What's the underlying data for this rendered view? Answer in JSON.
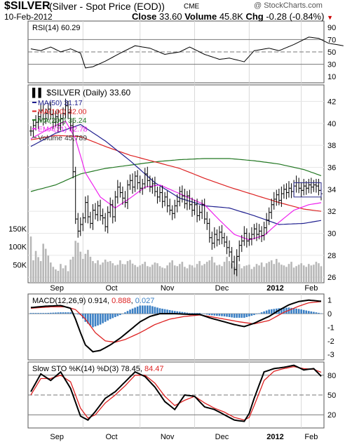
{
  "header": {
    "symbol": "$SILVER",
    "description": "(Silver - Spot Price (EOD))",
    "exchange": "CME",
    "logo": "@ StockCharts.com",
    "date": "10-Feb-2012",
    "close_label": "Close",
    "close_value": "33.60",
    "volume_label": "Volume",
    "volume_value": "45.8K",
    "chg_label": "Chg",
    "chg_value": "-0.28 (-0.84%)",
    "down_arrow": "▼"
  },
  "colors": {
    "price_bars": "#000000",
    "ma50": "#1f1f8f",
    "ma100": "#dd2222",
    "ma200": "#227722",
    "ema21": "#ee22ee",
    "volume": "#b8b8b8",
    "macd": "#000000",
    "macd_signal": "#dd2222",
    "macd_hist": "#3a7fc4",
    "sto_k": "#000000",
    "sto_d": "#dd2222"
  },
  "x_axis": {
    "months": [
      "Sep",
      "Oct",
      "Nov",
      "Dec",
      "2012",
      "Feb"
    ],
    "month_start_index": [
      0,
      21,
      44,
      66,
      88,
      109
    ]
  },
  "panels": {
    "rsi": {
      "legend_name": "RSI(14)",
      "legend_value": "60.29",
      "ticks": [
        "90",
        "70",
        "50",
        "30",
        "10"
      ]
    },
    "price": {
      "legend_title": "$SILVER (Daily)",
      "legend_value": "33.60",
      "ticks": [
        "42",
        "40",
        "38",
        "36",
        "34",
        "32",
        "30",
        "28",
        "26"
      ],
      "volume_ticks": [
        "150K",
        "100K",
        "50K"
      ],
      "legend": [
        {
          "label": "MA(50)",
          "value": "31.17",
          "color": "#1f1f8f"
        },
        {
          "label": "MA(100)",
          "value": "32.00",
          "color": "#dd2222"
        },
        {
          "label": "MA(200)",
          "value": "35.24",
          "color": "#227722"
        },
        {
          "label": "EMA(21)",
          "value": "32.78",
          "color": "#ee22ee"
        },
        {
          "label": "Volume",
          "value": "45,789",
          "color": "#888888"
        }
      ]
    },
    "macd": {
      "legend_name": "MACD(12,26,9)",
      "v1": "0.914",
      "v2": "0.888",
      "v3": "0.027",
      "ticks": [
        "1",
        "0",
        "-1",
        "-2",
        "-3"
      ]
    },
    "sto": {
      "legend_name": "Slow STO %K(14) %D(3)",
      "v1": "78.45",
      "v2": "84.47",
      "ticks": [
        "80",
        "50",
        "20"
      ]
    }
  },
  "chart_data": [
    {
      "type": "line",
      "title": "RSI(14)",
      "levels": [
        70,
        50,
        30
      ],
      "ylim": [
        0,
        100
      ],
      "y_ticks": [
        90,
        70,
        50,
        30,
        10
      ],
      "x_index": [
        0,
        4,
        8,
        12,
        16,
        20,
        22,
        25,
        30,
        36,
        42,
        48,
        54,
        60,
        64,
        70,
        76,
        80,
        86,
        90,
        96,
        100,
        106,
        112,
        116,
        120,
        126
      ],
      "values": [
        55,
        52,
        58,
        50,
        55,
        48,
        24,
        26,
        35,
        48,
        60,
        56,
        46,
        50,
        58,
        46,
        38,
        40,
        34,
        52,
        56,
        52,
        62,
        74,
        72,
        64,
        60
      ]
    },
    {
      "type": "ohlc",
      "title": "$SILVER (Daily)",
      "ylim": [
        25.5,
        43.5
      ],
      "y_ticks": [
        42,
        40,
        38,
        36,
        34,
        32,
        30,
        28,
        26
      ],
      "close": [
        39.3,
        39.8,
        40.1,
        40.6,
        41.2,
        40.4,
        40.9,
        41.3,
        40.8,
        40.1,
        40.6,
        39.8,
        40.4,
        40.9,
        41.6,
        41.0,
        39.8,
        35.6,
        31.3,
        30.2,
        30.8,
        31.4,
        32.8,
        31.5,
        30.9,
        32.1,
        31.7,
        32.5,
        31.6,
        31.4,
        30.6,
        31.9,
        32.6,
        31.5,
        33.3,
        34.2,
        33.7,
        33.2,
        32.8,
        34.4,
        34.8,
        34.2,
        35.2,
        34.6,
        34.1,
        34.5,
        35.4,
        34.8,
        34.2,
        34.5,
        33.8,
        33.3,
        33.7,
        32.9,
        33.3,
        32.5,
        32.1,
        31.8,
        32.5,
        32.9,
        33.8,
        33.4,
        32.7,
        33.4,
        32.6,
        32.1,
        32.6,
        31.6,
        31.9,
        32.6,
        31.3,
        30.9,
        29.6,
        29.1,
        29.9,
        29.4,
        30.1,
        29.6,
        29.2,
        28.7,
        28.3,
        27.4,
        26.7,
        27.9,
        28.9,
        29.3,
        30.0,
        29.3,
        29.5,
        29.9,
        30.4,
        29.9,
        30.2,
        29.8,
        30.5,
        31.2,
        31.9,
        32.6,
        33.1,
        33.5,
        33.0,
        33.6,
        34.0,
        33.7,
        34.1,
        33.8,
        34.3,
        34.6,
        34.1,
        33.9,
        34.3,
        34.1,
        34.4,
        34.2,
        34.4,
        34.3,
        33.9,
        33.6
      ],
      "ma50": {
        "x_index": [
          0,
          10,
          20,
          30,
          40,
          50,
          60,
          70,
          80,
          90,
          100,
          110,
          117
        ],
        "values": [
          37.9,
          39.1,
          39.9,
          38.4,
          36.6,
          34.6,
          33.2,
          32.5,
          32.3,
          31.6,
          30.8,
          30.9,
          31.17
        ]
      },
      "ma100": {
        "x_index": [
          0,
          10,
          20,
          30,
          40,
          50,
          60,
          70,
          80,
          90,
          100,
          110,
          117
        ],
        "values": [
          38.5,
          38.9,
          38.8,
          37.9,
          37.1,
          36.5,
          35.9,
          35.0,
          34.2,
          33.5,
          32.8,
          32.2,
          32.0
        ]
      },
      "ma200": {
        "x_index": [
          0,
          10,
          20,
          30,
          40,
          50,
          60,
          70,
          80,
          90,
          100,
          110,
          117
        ],
        "values": [
          33.8,
          34.4,
          35.4,
          35.9,
          36.2,
          36.5,
          36.7,
          36.8,
          36.8,
          36.6,
          36.3,
          35.8,
          35.24
        ]
      },
      "ema21": {
        "x_index": [
          0,
          8,
          14,
          18,
          22,
          28,
          34,
          40,
          46,
          52,
          58,
          64,
          70,
          76,
          82,
          88,
          94,
          100,
          106,
          112,
          117
        ],
        "values": [
          38.6,
          39.6,
          40.2,
          38.6,
          35.5,
          33.3,
          32.3,
          33.2,
          34.2,
          34.4,
          33.8,
          33.2,
          32.6,
          31.2,
          29.9,
          29.4,
          29.8,
          31.0,
          32.1,
          32.6,
          32.78
        ]
      },
      "volume": [
        128,
        62,
        88,
        71,
        60,
        108,
        94,
        75,
        56,
        44,
        37,
        33,
        52,
        40,
        48,
        32,
        64,
        72,
        116,
        111,
        86,
        66,
        80,
        91,
        72,
        60,
        54,
        62,
        50,
        56,
        64,
        58,
        60,
        54,
        48,
        50,
        62,
        52,
        51,
        60,
        63,
        53,
        49,
        44,
        48,
        52,
        58,
        46,
        44,
        50,
        56,
        54,
        46,
        42,
        40,
        48,
        56,
        62,
        48,
        46,
        52,
        58,
        44,
        40,
        50,
        48,
        42,
        52,
        60,
        48,
        52,
        58,
        62,
        72,
        56,
        48,
        50,
        46,
        58,
        72,
        60,
        54,
        44,
        72,
        52,
        40,
        46,
        48,
        50,
        38,
        44,
        52,
        48,
        56,
        44,
        54,
        58,
        62,
        52,
        66,
        56,
        50,
        48,
        44,
        52,
        58,
        42,
        46,
        50,
        54,
        48,
        44,
        52,
        48,
        50,
        58,
        54,
        45.8
      ],
      "volume_ylim": [
        0,
        200
      ],
      "volume_ticks": [
        150,
        100,
        50
      ]
    },
    {
      "type": "line",
      "title": "MACD(12,26,9)",
      "ylim": [
        -3.4,
        1.45
      ],
      "y_ticks": [
        1,
        0,
        -1,
        -2,
        -3
      ],
      "macd": {
        "x_index": [
          0,
          6,
          12,
          16,
          18,
          20,
          22,
          25,
          28,
          32,
          36,
          40,
          44,
          48,
          52,
          58,
          64,
          68,
          72,
          78,
          82,
          86,
          90,
          96,
          100,
          104,
          108,
          112,
          117
        ],
        "values": [
          0.45,
          0.55,
          0.6,
          0.4,
          -0.4,
          -1.4,
          -2.3,
          -2.8,
          -2.7,
          -2.3,
          -1.8,
          -1.2,
          -0.6,
          -0.2,
          0.0,
          0.0,
          -0.05,
          -0.05,
          -0.3,
          -0.6,
          -0.8,
          -0.95,
          -0.7,
          -0.2,
          0.25,
          0.65,
          0.9,
          1.0,
          0.914
        ]
      },
      "signal": {
        "x_index": [
          0,
          8,
          14,
          18,
          22,
          26,
          30,
          34,
          38,
          44,
          50,
          56,
          62,
          68,
          72,
          78,
          84,
          90,
          96,
          102,
          108,
          112,
          117
        ],
        "values": [
          0.4,
          0.5,
          0.5,
          0.3,
          -0.4,
          -1.4,
          -2.0,
          -2.1,
          -1.9,
          -1.4,
          -0.8,
          -0.4,
          -0.2,
          -0.1,
          -0.2,
          -0.4,
          -0.6,
          -0.75,
          -0.5,
          0.1,
          0.55,
          0.8,
          0.888
        ]
      },
      "histogram": {
        "x_index": [
          0,
          6,
          12,
          16,
          18,
          20,
          22,
          25,
          28,
          32,
          36,
          40,
          44,
          48,
          52,
          58,
          64,
          68,
          72,
          78,
          82,
          86,
          90,
          96,
          100,
          104,
          108,
          112,
          117
        ],
        "values": [
          0.05,
          0.05,
          0.1,
          0.1,
          0.0,
          -0.1,
          -0.6,
          -1.0,
          -0.8,
          -0.4,
          -0.1,
          0.3,
          0.6,
          0.6,
          0.4,
          0.2,
          0.05,
          0.05,
          -0.1,
          -0.2,
          -0.3,
          -0.3,
          -0.1,
          0.3,
          0.4,
          0.45,
          0.35,
          0.2,
          0.027
        ]
      }
    },
    {
      "type": "line",
      "title": "Slow STO %K(14) %D(3)",
      "ylim": [
        0,
        100
      ],
      "y_ticks": [
        80,
        50,
        20
      ],
      "k": {
        "x_index": [
          0,
          4,
          8,
          12,
          16,
          20,
          23,
          26,
          30,
          34,
          38,
          42,
          46,
          50,
          54,
          58,
          62,
          66,
          70,
          74,
          78,
          82,
          86,
          88,
          90,
          94,
          98,
          102,
          106,
          110,
          114,
          117
        ],
        "values": [
          55,
          82,
          72,
          85,
          60,
          18,
          12,
          25,
          45,
          55,
          70,
          85,
          78,
          62,
          40,
          28,
          50,
          48,
          32,
          28,
          20,
          12,
          10,
          22,
          45,
          85,
          90,
          92,
          95,
          88,
          90,
          78.45
        ]
      },
      "d": {
        "x_index": [
          0,
          4,
          8,
          12,
          16,
          20,
          23,
          26,
          30,
          34,
          38,
          42,
          46,
          50,
          54,
          58,
          62,
          66,
          70,
          74,
          78,
          82,
          86,
          88,
          90,
          94,
          98,
          102,
          106,
          110,
          114,
          117
        ],
        "values": [
          50,
          75,
          75,
          80,
          70,
          30,
          15,
          20,
          38,
          50,
          64,
          80,
          80,
          68,
          48,
          34,
          42,
          48,
          38,
          30,
          24,
          16,
          12,
          16,
          34,
          72,
          86,
          90,
          93,
          90,
          89,
          84.47
        ]
      }
    }
  ]
}
